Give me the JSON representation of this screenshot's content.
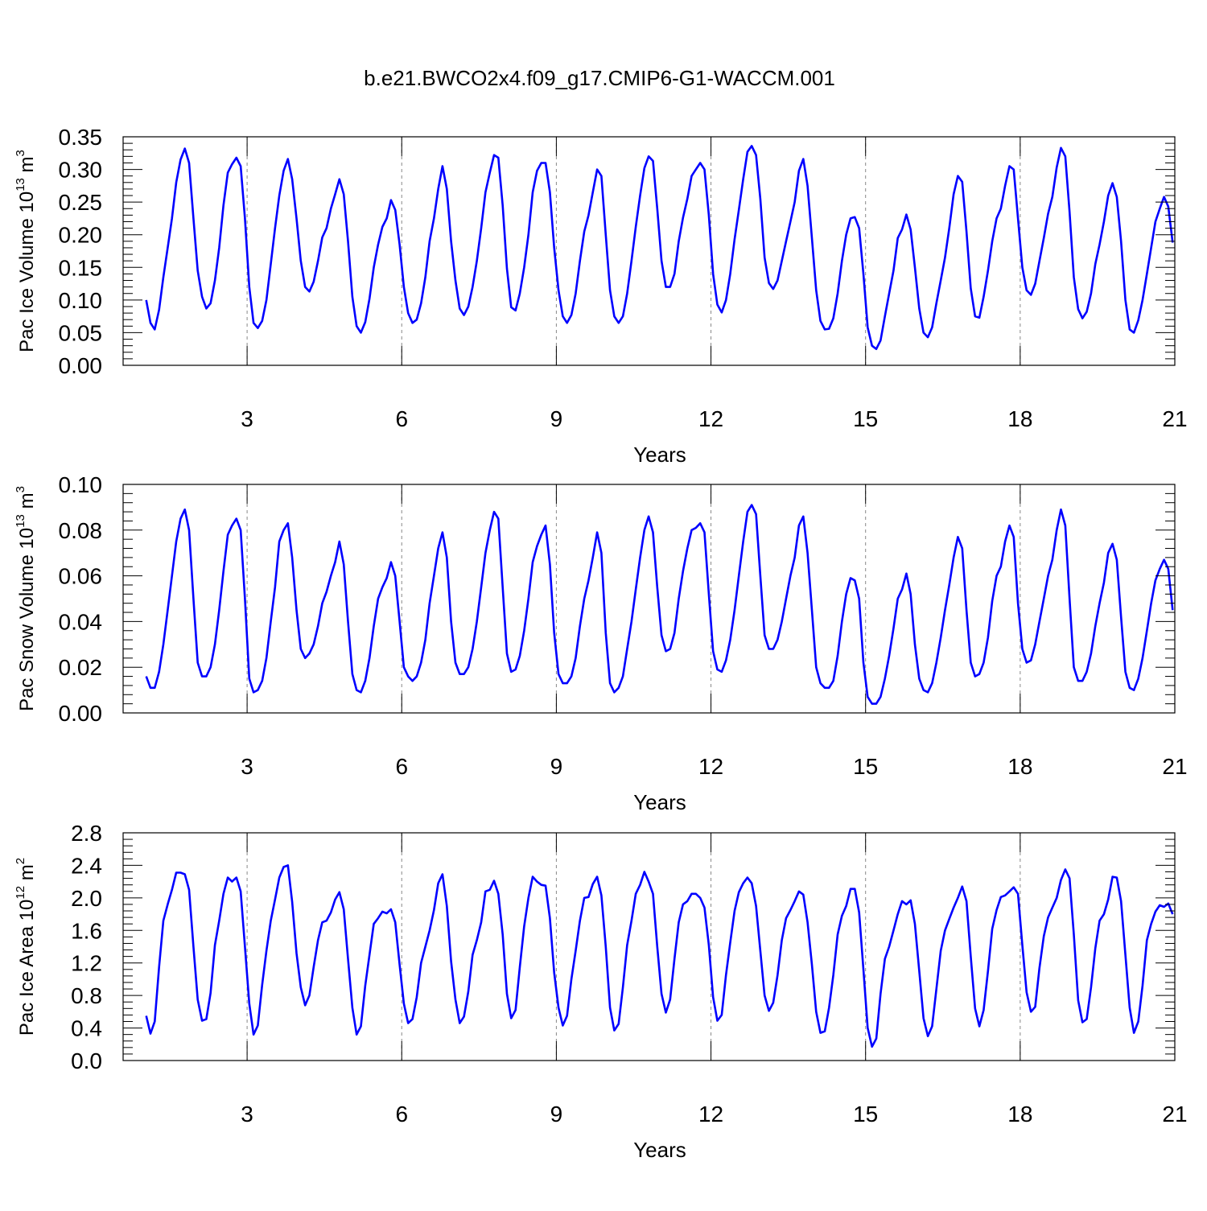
{
  "title": "b.e21.BWCO2x4.f09_g17.CMIP6-G1-WACCM.001",
  "colors": {
    "series": "#0000ff",
    "axis": "#000000",
    "grid": "#888888"
  },
  "chart_data": [
    {
      "type": "line",
      "ylabel": {
        "main": "Pac Ice Volume 10",
        "sup": "13",
        "unit": " m",
        "unit_sup": "3"
      },
      "xlabel": "Years",
      "xlim": [
        1.0,
        21.0
      ],
      "ylim": [
        0.0,
        0.35
      ],
      "xticks": [
        3,
        6,
        9,
        12,
        15,
        18,
        21
      ],
      "yticks": [
        "0.00",
        "0.05",
        "0.10",
        "0.15",
        "0.20",
        "0.25",
        "0.30",
        "0.35"
      ],
      "series": [
        {
          "x_start": 1.0417,
          "x_step": 0.08333,
          "values": [
            0.1,
            0.065,
            0.055,
            0.085,
            0.135,
            0.18,
            0.225,
            0.28,
            0.315,
            0.332,
            0.31,
            0.225,
            0.145,
            0.105,
            0.087,
            0.095,
            0.13,
            0.18,
            0.245,
            0.295,
            0.308,
            0.318,
            0.305,
            0.225,
            0.12,
            0.065,
            0.057,
            0.068,
            0.1,
            0.155,
            0.21,
            0.26,
            0.298,
            0.316,
            0.285,
            0.225,
            0.16,
            0.12,
            0.113,
            0.128,
            0.16,
            0.196,
            0.21,
            0.24,
            0.262,
            0.285,
            0.262,
            0.19,
            0.105,
            0.06,
            0.05,
            0.066,
            0.102,
            0.15,
            0.185,
            0.212,
            0.225,
            0.253,
            0.238,
            0.185,
            0.12,
            0.08,
            0.065,
            0.07,
            0.095,
            0.135,
            0.19,
            0.225,
            0.27,
            0.305,
            0.27,
            0.19,
            0.13,
            0.087,
            0.077,
            0.09,
            0.12,
            0.16,
            0.21,
            0.265,
            0.295,
            0.322,
            0.318,
            0.245,
            0.148,
            0.089,
            0.084,
            0.11,
            0.15,
            0.2,
            0.265,
            0.298,
            0.31,
            0.31,
            0.265,
            0.18,
            0.115,
            0.075,
            0.065,
            0.077,
            0.11,
            0.16,
            0.205,
            0.23,
            0.265,
            0.3,
            0.29,
            0.2,
            0.115,
            0.075,
            0.065,
            0.075,
            0.11,
            0.16,
            0.212,
            0.26,
            0.302,
            0.32,
            0.313,
            0.24,
            0.16,
            0.12,
            0.12,
            0.14,
            0.19,
            0.226,
            0.255,
            0.29,
            0.3,
            0.31,
            0.3,
            0.23,
            0.14,
            0.093,
            0.081,
            0.1,
            0.14,
            0.193,
            0.238,
            0.285,
            0.327,
            0.336,
            0.322,
            0.255,
            0.165,
            0.126,
            0.117,
            0.13,
            0.16,
            0.19,
            0.22,
            0.25,
            0.298,
            0.316,
            0.275,
            0.195,
            0.115,
            0.068,
            0.055,
            0.056,
            0.072,
            0.11,
            0.16,
            0.2,
            0.225,
            0.227,
            0.21,
            0.14,
            0.058,
            0.03,
            0.025,
            0.038,
            0.075,
            0.11,
            0.145,
            0.195,
            0.208,
            0.231,
            0.208,
            0.15,
            0.087,
            0.05,
            0.043,
            0.058,
            0.095,
            0.13,
            0.165,
            0.21,
            0.262,
            0.29,
            0.281,
            0.205,
            0.118,
            0.075,
            0.073,
            0.105,
            0.145,
            0.19,
            0.225,
            0.24,
            0.275,
            0.305,
            0.3,
            0.225,
            0.15,
            0.115,
            0.108,
            0.125,
            0.16,
            0.195,
            0.232,
            0.258,
            0.303,
            0.333,
            0.32,
            0.235,
            0.135,
            0.086,
            0.072,
            0.082,
            0.11,
            0.155,
            0.185,
            0.22,
            0.26,
            0.279,
            0.258,
            0.19,
            0.1,
            0.055,
            0.05,
            0.069,
            0.1,
            0.14,
            0.18,
            0.22,
            0.24,
            0.258,
            0.243,
            0.188
          ]
        }
      ]
    },
    {
      "type": "line",
      "ylabel": {
        "main": "Pac Snow Volume 10",
        "sup": "13",
        "unit": " m",
        "unit_sup": "3"
      },
      "xlabel": "Years",
      "xlim": [
        1.0,
        21.0
      ],
      "ylim": [
        0.0,
        0.1
      ],
      "xticks": [
        3,
        6,
        9,
        12,
        15,
        18,
        21
      ],
      "yticks": [
        "0.00",
        "0.02",
        "0.04",
        "0.06",
        "0.08",
        "0.10"
      ],
      "series": [
        {
          "x_start": 1.0417,
          "x_step": 0.08333,
          "values": [
            0.016,
            0.011,
            0.011,
            0.018,
            0.03,
            0.045,
            0.06,
            0.075,
            0.085,
            0.089,
            0.08,
            0.05,
            0.022,
            0.016,
            0.016,
            0.02,
            0.03,
            0.045,
            0.062,
            0.078,
            0.082,
            0.085,
            0.08,
            0.05,
            0.015,
            0.009,
            0.01,
            0.014,
            0.024,
            0.04,
            0.055,
            0.075,
            0.08,
            0.083,
            0.068,
            0.045,
            0.028,
            0.024,
            0.026,
            0.03,
            0.038,
            0.048,
            0.053,
            0.06,
            0.066,
            0.075,
            0.065,
            0.04,
            0.017,
            0.01,
            0.009,
            0.014,
            0.024,
            0.038,
            0.05,
            0.055,
            0.059,
            0.066,
            0.06,
            0.04,
            0.02,
            0.016,
            0.014,
            0.016,
            0.022,
            0.032,
            0.048,
            0.06,
            0.072,
            0.079,
            0.068,
            0.04,
            0.022,
            0.017,
            0.017,
            0.02,
            0.028,
            0.04,
            0.055,
            0.07,
            0.08,
            0.088,
            0.085,
            0.055,
            0.026,
            0.018,
            0.019,
            0.025,
            0.036,
            0.05,
            0.066,
            0.073,
            0.078,
            0.082,
            0.065,
            0.035,
            0.017,
            0.013,
            0.013,
            0.016,
            0.024,
            0.038,
            0.05,
            0.058,
            0.068,
            0.079,
            0.07,
            0.035,
            0.013,
            0.009,
            0.011,
            0.016,
            0.028,
            0.04,
            0.054,
            0.068,
            0.08,
            0.086,
            0.079,
            0.055,
            0.034,
            0.027,
            0.028,
            0.035,
            0.05,
            0.062,
            0.072,
            0.08,
            0.081,
            0.083,
            0.079,
            0.052,
            0.027,
            0.019,
            0.018,
            0.023,
            0.032,
            0.045,
            0.06,
            0.075,
            0.088,
            0.091,
            0.087,
            0.06,
            0.034,
            0.028,
            0.028,
            0.032,
            0.04,
            0.05,
            0.06,
            0.068,
            0.082,
            0.086,
            0.07,
            0.045,
            0.02,
            0.013,
            0.011,
            0.011,
            0.014,
            0.025,
            0.04,
            0.052,
            0.059,
            0.058,
            0.05,
            0.022,
            0.007,
            0.004,
            0.004,
            0.007,
            0.015,
            0.025,
            0.037,
            0.05,
            0.054,
            0.061,
            0.052,
            0.03,
            0.015,
            0.01,
            0.009,
            0.013,
            0.022,
            0.033,
            0.045,
            0.056,
            0.068,
            0.077,
            0.072,
            0.045,
            0.022,
            0.016,
            0.017,
            0.022,
            0.033,
            0.049,
            0.06,
            0.064,
            0.075,
            0.082,
            0.077,
            0.048,
            0.028,
            0.022,
            0.023,
            0.03,
            0.04,
            0.05,
            0.06,
            0.067,
            0.08,
            0.089,
            0.082,
            0.05,
            0.02,
            0.014,
            0.014,
            0.018,
            0.026,
            0.038,
            0.048,
            0.057,
            0.07,
            0.074,
            0.067,
            0.042,
            0.018,
            0.011,
            0.01,
            0.015,
            0.024,
            0.036,
            0.048,
            0.058,
            0.063,
            0.067,
            0.063,
            0.045
          ]
        }
      ]
    },
    {
      "type": "line",
      "ylabel": {
        "main": "Pac Ice Area 10",
        "sup": "12",
        "unit": " m",
        "unit_sup": "2"
      },
      "xlabel": "Years",
      "xlim": [
        1.0,
        21.0
      ],
      "ylim": [
        0.0,
        2.8
      ],
      "xticks": [
        3,
        6,
        9,
        12,
        15,
        18,
        21
      ],
      "yticks": [
        "0.0",
        "0.4",
        "0.8",
        "1.2",
        "1.6",
        "2.0",
        "2.4",
        "2.8"
      ],
      "series": [
        {
          "x_start": 1.0417,
          "x_step": 0.08333,
          "values": [
            0.55,
            0.33,
            0.48,
            1.15,
            1.72,
            1.92,
            2.1,
            2.31,
            2.31,
            2.29,
            2.1,
            1.4,
            0.75,
            0.49,
            0.51,
            0.83,
            1.42,
            1.72,
            2.05,
            2.25,
            2.2,
            2.25,
            2.08,
            1.4,
            0.7,
            0.32,
            0.43,
            0.93,
            1.35,
            1.72,
            1.98,
            2.25,
            2.38,
            2.4,
            1.95,
            1.32,
            0.9,
            0.68,
            0.8,
            1.15,
            1.48,
            1.7,
            1.72,
            1.82,
            1.98,
            2.07,
            1.86,
            1.25,
            0.65,
            0.32,
            0.42,
            0.92,
            1.3,
            1.68,
            1.75,
            1.83,
            1.81,
            1.86,
            1.7,
            1.18,
            0.7,
            0.46,
            0.51,
            0.78,
            1.2,
            1.4,
            1.6,
            1.85,
            2.18,
            2.29,
            1.9,
            1.22,
            0.75,
            0.46,
            0.54,
            0.85,
            1.3,
            1.48,
            1.7,
            2.08,
            2.1,
            2.21,
            2.05,
            1.55,
            0.82,
            0.52,
            0.62,
            1.15,
            1.65,
            2.0,
            2.26,
            2.2,
            2.16,
            2.15,
            1.75,
            1.08,
            0.65,
            0.43,
            0.55,
            1.0,
            1.35,
            1.72,
            2.0,
            2.01,
            2.17,
            2.26,
            2.03,
            1.4,
            0.65,
            0.37,
            0.45,
            0.9,
            1.42,
            1.72,
            2.05,
            2.16,
            2.32,
            2.2,
            2.05,
            1.4,
            0.82,
            0.59,
            0.75,
            1.25,
            1.7,
            1.92,
            1.96,
            2.05,
            2.05,
            2.0,
            1.88,
            1.42,
            0.78,
            0.49,
            0.56,
            1.05,
            1.45,
            1.84,
            2.07,
            2.18,
            2.25,
            2.18,
            1.9,
            1.35,
            0.8,
            0.61,
            0.71,
            1.05,
            1.48,
            1.75,
            1.85,
            1.96,
            2.08,
            2.04,
            1.7,
            1.18,
            0.6,
            0.34,
            0.36,
            0.65,
            1.05,
            1.55,
            1.78,
            1.9,
            2.11,
            2.11,
            1.82,
            1.12,
            0.4,
            0.17,
            0.27,
            0.82,
            1.25,
            1.4,
            1.6,
            1.8,
            1.96,
            1.92,
            1.97,
            1.68,
            1.1,
            0.52,
            0.3,
            0.42,
            0.88,
            1.35,
            1.6,
            1.74,
            1.88,
            2.0,
            2.14,
            1.96,
            1.28,
            0.64,
            0.42,
            0.62,
            1.1,
            1.62,
            1.85,
            2.01,
            2.03,
            2.08,
            2.13,
            2.05,
            1.42,
            0.84,
            0.6,
            0.66,
            1.14,
            1.53,
            1.76,
            1.88,
            2.0,
            2.22,
            2.35,
            2.24,
            1.55,
            0.74,
            0.47,
            0.51,
            0.9,
            1.38,
            1.72,
            1.8,
            1.98,
            2.26,
            2.25,
            1.96,
            1.3,
            0.65,
            0.34,
            0.48,
            0.92,
            1.48,
            1.68,
            1.83,
            1.91,
            1.89,
            1.93,
            1.8
          ]
        }
      ]
    }
  ]
}
